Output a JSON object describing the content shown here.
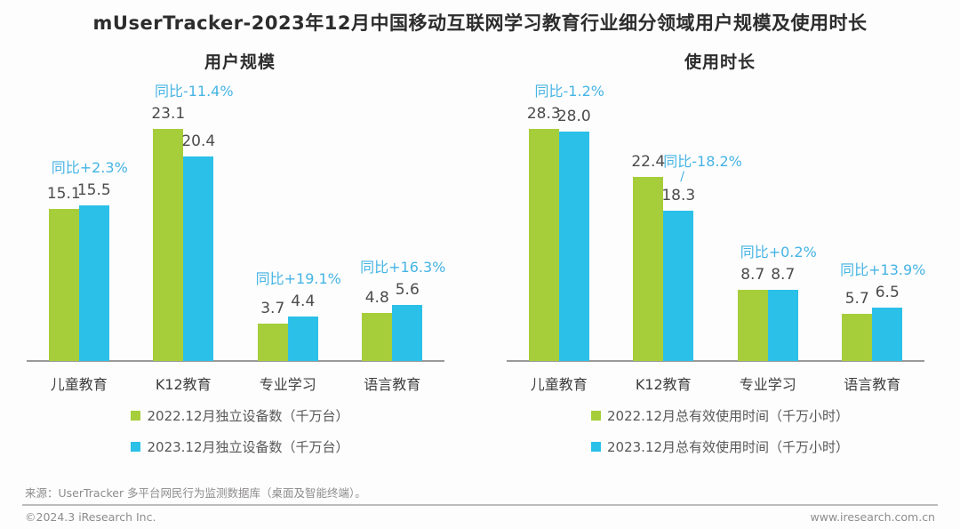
{
  "page_title": "mUserTracker-2023年12月中国移动互联网学习教育行业细分领域用户规模及使用时长",
  "source_note": "来源：UserTracker 多平台网民行为监测数据库（桌面及智能终端）。",
  "footer": {
    "copyright": "©2024.3 iResearch Inc.",
    "website": "www.iresearch.com.cn"
  },
  "colors": {
    "series_2022_green": "#a6ce3b",
    "series_2023_blue": "#2bc0e8",
    "yoy_label_blue": "#46b4e4",
    "axis_gray": "#9a9a9a"
  },
  "chart_data": [
    {
      "type": "bar",
      "title": "用户规模",
      "categories": [
        "儿童教育",
        "K12教育",
        "专业学习",
        "语言教育"
      ],
      "series": [
        {
          "name": "2022.12月独立设备数（千万台）",
          "color": "#a6ce3b",
          "values": [
            15.1,
            23.1,
            3.7,
            4.8
          ]
        },
        {
          "name": "2023.12月独立设备数（千万台）",
          "color": "#2bc0e8",
          "values": [
            15.5,
            20.4,
            4.4,
            5.6
          ]
        }
      ],
      "yoy_labels": [
        "同比+2.3%",
        "同比-11.4%",
        "同比+19.1%",
        "同比+16.3%"
      ],
      "xlabel": "",
      "ylabel": "",
      "ylim": [
        0,
        24
      ],
      "grid": false,
      "legend_position": "bottom"
    },
    {
      "type": "bar",
      "title": "使用时长",
      "categories": [
        "儿童教育",
        "K12教育",
        "专业学习",
        "语言教育"
      ],
      "series": [
        {
          "name": "2022.12月总有效使用时间（千万小时）",
          "color": "#a6ce3b",
          "values": [
            28.3,
            22.4,
            8.7,
            5.7
          ]
        },
        {
          "name": "2023.12月总有效使用时间（千万小时）",
          "color": "#2bc0e8",
          "values": [
            28.0,
            18.3,
            8.7,
            6.5
          ]
        }
      ],
      "yoy_labels": [
        "同比-1.2%",
        "同比-18.2%",
        "同比+0.2%",
        "同比+13.9%"
      ],
      "xlabel": "",
      "ylabel": "",
      "ylim": [
        0,
        29
      ],
      "grid": false,
      "legend_position": "bottom"
    }
  ]
}
